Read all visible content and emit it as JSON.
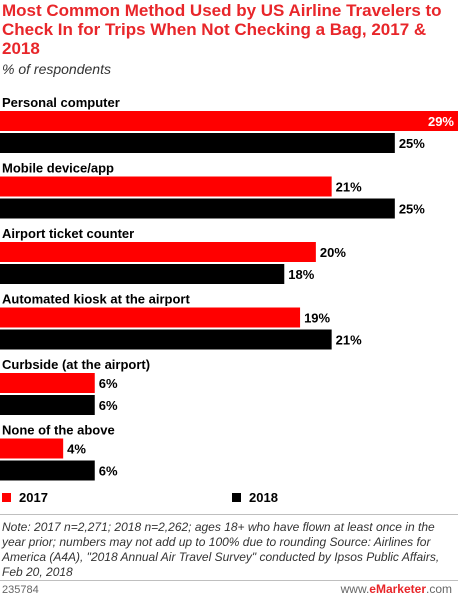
{
  "header": {
    "title": "Most Common Method Used by US Airline Travelers to Check In for Trips When Not Checking a Bag, 2017 & 2018",
    "subtitle": "% of respondents"
  },
  "colors": {
    "series_2017": "#ff0000",
    "series_2018": "#000000",
    "title": "#e8262a"
  },
  "chart_data": {
    "type": "bar",
    "orientation": "horizontal",
    "title": "Most Common Method Used by US Airline Travelers to Check In for Trips When Not Checking a Bag, 2017 & 2018",
    "subtitle": "% of respondents",
    "categories": [
      "Personal computer",
      "Mobile device/app",
      "Airport ticket counter",
      "Automated kiosk at the airport",
      "Curbside (at the airport)",
      "None of the above"
    ],
    "series": [
      {
        "name": "2017",
        "color": "#ff0000",
        "values": [
          29,
          21,
          20,
          19,
          6,
          4
        ]
      },
      {
        "name": "2018",
        "color": "#000000",
        "values": [
          25,
          25,
          18,
          21,
          6,
          6
        ]
      }
    ],
    "value_suffix": "%",
    "xlim": [
      0,
      29
    ],
    "grid": false,
    "legend_position": "bottom"
  },
  "footer": {
    "note": "Note: 2017 n=2,271; 2018 n=2,262; ages 18+ who have flown at least once in the year prior; numbers may not add up to 100% due to rounding",
    "source": "Source: Airlines for America (A4A), \"2018 Annual Air Travel Survey\" conducted by Ipsos Public Affairs, Feb 20, 2018",
    "chart_id": "235784",
    "brand_prefix": "www.",
    "brand_name": "eMarketer",
    "brand_suffix": ".com"
  }
}
